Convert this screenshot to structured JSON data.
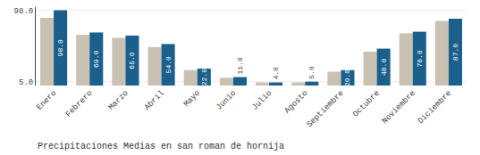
{
  "chart_data": {
    "type": "bar",
    "subtitle": "Precipitaciones Medias en san roman de hornija",
    "categories": [
      "Enero",
      "Febrero",
      "Marzo",
      "Abril",
      "Mayo",
      "Junio",
      "Julio",
      "Agosto",
      "Septiembre",
      "Octubre",
      "Noviembre",
      "Diciembre"
    ],
    "series": [
      {
        "color": "#c9c1b2",
        "values": [
          88,
          66,
          62,
          50,
          20,
          10,
          4,
          4,
          18,
          44,
          68,
          84
        ]
      },
      {
        "color": "#1b5f8c",
        "values": [
          98,
          69,
          65,
          54,
          22,
          11,
          4,
          5,
          20,
          48,
          70,
          87
        ],
        "data_labels": true,
        "value_labels": [
          "98.0",
          "69.0",
          "65.0",
          "54.0",
          "22.0",
          "11.0",
          "4.0",
          "5.0",
          "20.0",
          "48.0",
          "70.0",
          "87.0"
        ]
      }
    ],
    "ylim": [
      0,
      102
    ],
    "yticks": [
      {
        "value": 5,
        "label": "5.0"
      },
      {
        "value": 98,
        "label": "98.0"
      }
    ],
    "grid": true
  }
}
